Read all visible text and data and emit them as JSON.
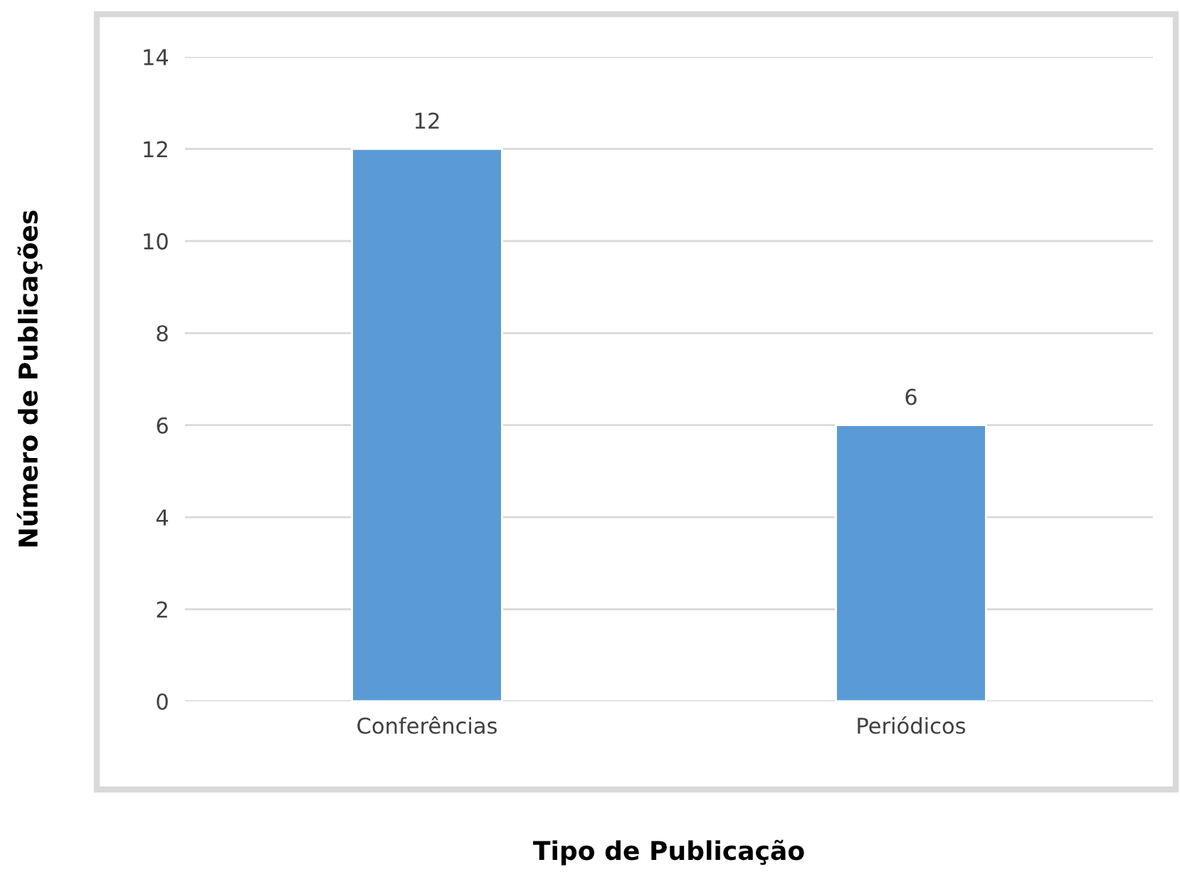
{
  "chart_data": {
    "type": "bar",
    "xlabel": "Tipo de Publicação",
    "ylabel": "Número de Publicações",
    "categories": [
      "Conferências",
      "Periódicos"
    ],
    "values": [
      12,
      6
    ],
    "color": "#5b9bd5",
    "ylim": [
      0,
      14
    ],
    "yticks": [
      0,
      2,
      4,
      6,
      8,
      10,
      12,
      14
    ],
    "grid": "y",
    "data_labels": true
  }
}
